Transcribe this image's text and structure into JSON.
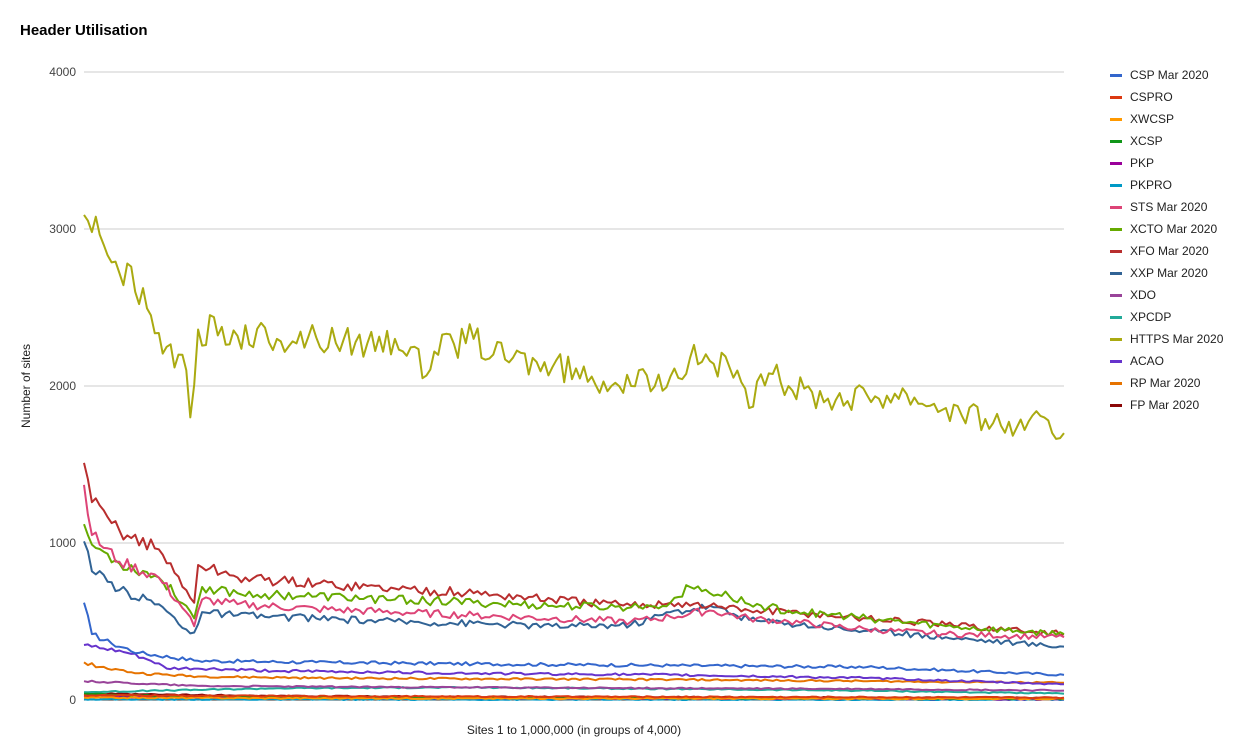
{
  "chart_data": {
    "type": "line",
    "title": "Header Utilisation",
    "xlabel": "Sites 1 to 1,000,000 (in groups of 4,000)",
    "ylabel": "Number of sites",
    "ylim": [
      0,
      4000
    ],
    "yticks": [
      0,
      1000,
      2000,
      3000,
      4000
    ],
    "x": {
      "start": 1,
      "end": 250,
      "count": 250
    },
    "grid": true,
    "legend_position": "right",
    "series": [
      {
        "name": "CSP Mar 2020",
        "color": "#3366cc",
        "points": [
          [
            1,
            620
          ],
          [
            3,
            420
          ],
          [
            8,
            360
          ],
          [
            15,
            300
          ],
          [
            30,
            250
          ],
          [
            60,
            240
          ],
          [
            100,
            230
          ],
          [
            150,
            220
          ],
          [
            200,
            210
          ],
          [
            250,
            160
          ]
        ]
      },
      {
        "name": "CSPRO",
        "color": "#dc3912",
        "points": [
          [
            1,
            30
          ],
          [
            50,
            25
          ],
          [
            100,
            22
          ],
          [
            150,
            20
          ],
          [
            200,
            18
          ],
          [
            250,
            15
          ]
        ]
      },
      {
        "name": "XWCSP",
        "color": "#ff9900",
        "points": [
          [
            1,
            15
          ],
          [
            50,
            12
          ],
          [
            100,
            10
          ],
          [
            150,
            10
          ],
          [
            200,
            8
          ],
          [
            250,
            8
          ]
        ]
      },
      {
        "name": "XCSP",
        "color": "#109618",
        "points": [
          [
            1,
            40
          ],
          [
            20,
            25
          ],
          [
            50,
            20
          ],
          [
            100,
            15
          ],
          [
            150,
            12
          ],
          [
            200,
            10
          ],
          [
            250,
            8
          ]
        ]
      },
      {
        "name": "PKP",
        "color": "#990099",
        "points": [
          [
            1,
            20
          ],
          [
            50,
            15
          ],
          [
            100,
            12
          ],
          [
            150,
            10
          ],
          [
            200,
            8
          ],
          [
            250,
            5
          ]
        ]
      },
      {
        "name": "PKPRO",
        "color": "#0099c6",
        "points": [
          [
            1,
            5
          ],
          [
            50,
            4
          ],
          [
            100,
            3
          ],
          [
            150,
            3
          ],
          [
            200,
            2
          ],
          [
            250,
            2
          ]
        ]
      },
      {
        "name": "STS Mar 2020",
        "color": "#dd4477",
        "points": [
          [
            1,
            1370
          ],
          [
            3,
            1050
          ],
          [
            10,
            880
          ],
          [
            20,
            780
          ],
          [
            27,
            560
          ],
          [
            29,
            470
          ],
          [
            31,
            640
          ],
          [
            40,
            610
          ],
          [
            60,
            580
          ],
          [
            80,
            560
          ],
          [
            100,
            540
          ],
          [
            120,
            520
          ],
          [
            140,
            500
          ],
          [
            150,
            530
          ],
          [
            160,
            570
          ],
          [
            170,
            520
          ],
          [
            180,
            500
          ],
          [
            200,
            450
          ],
          [
            220,
            420
          ],
          [
            250,
            400
          ]
        ]
      },
      {
        "name": "XCTO Mar 2020",
        "color": "#66aa00",
        "points": [
          [
            1,
            1120
          ],
          [
            3,
            990
          ],
          [
            10,
            870
          ],
          [
            20,
            780
          ],
          [
            27,
            600
          ],
          [
            29,
            520
          ],
          [
            31,
            720
          ],
          [
            40,
            680
          ],
          [
            60,
            660
          ],
          [
            80,
            640
          ],
          [
            100,
            620
          ],
          [
            120,
            600
          ],
          [
            140,
            590
          ],
          [
            150,
            620
          ],
          [
            155,
            720
          ],
          [
            165,
            660
          ],
          [
            170,
            610
          ],
          [
            180,
            570
          ],
          [
            200,
            520
          ],
          [
            220,
            470
          ],
          [
            250,
            420
          ]
        ]
      },
      {
        "name": "XFO Mar 2020",
        "color": "#b82e2e",
        "points": [
          [
            1,
            1510
          ],
          [
            3,
            1260
          ],
          [
            10,
            1080
          ],
          [
            20,
            960
          ],
          [
            27,
            700
          ],
          [
            29,
            620
          ],
          [
            30,
            860
          ],
          [
            40,
            780
          ],
          [
            60,
            740
          ],
          [
            80,
            710
          ],
          [
            100,
            680
          ],
          [
            120,
            640
          ],
          [
            140,
            600
          ],
          [
            150,
            620
          ],
          [
            160,
            600
          ],
          [
            170,
            570
          ],
          [
            180,
            560
          ],
          [
            200,
            520
          ],
          [
            220,
            480
          ],
          [
            250,
            420
          ]
        ]
      },
      {
        "name": "XXP Mar 2020",
        "color": "#316395",
        "points": [
          [
            1,
            1010
          ],
          [
            3,
            820
          ],
          [
            10,
            700
          ],
          [
            20,
            610
          ],
          [
            27,
            450
          ],
          [
            29,
            430
          ],
          [
            31,
            560
          ],
          [
            40,
            540
          ],
          [
            60,
            520
          ],
          [
            80,
            500
          ],
          [
            100,
            490
          ],
          [
            120,
            470
          ],
          [
            140,
            480
          ],
          [
            150,
            560
          ],
          [
            160,
            600
          ],
          [
            170,
            510
          ],
          [
            180,
            490
          ],
          [
            200,
            440
          ],
          [
            220,
            400
          ],
          [
            250,
            340
          ]
        ]
      },
      {
        "name": "XDO",
        "color": "#994499",
        "points": [
          [
            1,
            120
          ],
          [
            30,
            90
          ],
          [
            60,
            85
          ],
          [
            100,
            80
          ],
          [
            150,
            75
          ],
          [
            200,
            70
          ],
          [
            250,
            60
          ]
        ]
      },
      {
        "name": "XPCDP",
        "color": "#22aa99",
        "points": [
          [
            1,
            50
          ],
          [
            20,
            60
          ],
          [
            50,
            75
          ],
          [
            100,
            80
          ],
          [
            150,
            70
          ],
          [
            200,
            60
          ],
          [
            250,
            40
          ]
        ]
      },
      {
        "name": "HTTPS Mar 2020",
        "color": "#aaaa11",
        "points": [
          [
            1,
            3090
          ],
          [
            3,
            2980
          ],
          [
            6,
            2900
          ],
          [
            10,
            2720
          ],
          [
            12,
            2780
          ],
          [
            14,
            2600
          ],
          [
            18,
            2450
          ],
          [
            22,
            2250
          ],
          [
            25,
            2200
          ],
          [
            27,
            2100
          ],
          [
            28,
            1800
          ],
          [
            30,
            2360
          ],
          [
            40,
            2320
          ],
          [
            50,
            2300
          ],
          [
            60,
            2310
          ],
          [
            70,
            2280
          ],
          [
            80,
            2300
          ],
          [
            85,
            2250
          ],
          [
            87,
            2050
          ],
          [
            90,
            2220
          ],
          [
            100,
            2300
          ],
          [
            105,
            2200
          ],
          [
            110,
            2180
          ],
          [
            120,
            2120
          ],
          [
            130,
            2060
          ],
          [
            140,
            2000
          ],
          [
            150,
            2060
          ],
          [
            155,
            2180
          ],
          [
            160,
            2160
          ],
          [
            165,
            2120
          ],
          [
            170,
            1860
          ],
          [
            175,
            2080
          ],
          [
            180,
            2000
          ],
          [
            190,
            1920
          ],
          [
            200,
            1940
          ],
          [
            210,
            1950
          ],
          [
            220,
            1860
          ],
          [
            230,
            1790
          ],
          [
            240,
            1720
          ],
          [
            245,
            1800
          ],
          [
            247,
            1700
          ],
          [
            250,
            1700
          ]
        ]
      },
      {
        "name": "ACAO",
        "color": "#6633cc",
        "points": [
          [
            1,
            350
          ],
          [
            5,
            330
          ],
          [
            12,
            300
          ],
          [
            18,
            250
          ],
          [
            22,
            200
          ],
          [
            30,
            200
          ],
          [
            50,
            185
          ],
          [
            100,
            170
          ],
          [
            150,
            160
          ],
          [
            200,
            140
          ],
          [
            250,
            100
          ]
        ]
      },
      {
        "name": "RP Mar 2020",
        "color": "#e67300",
        "points": [
          [
            1,
            240
          ],
          [
            5,
            210
          ],
          [
            15,
            170
          ],
          [
            30,
            150
          ],
          [
            60,
            140
          ],
          [
            100,
            135
          ],
          [
            150,
            130
          ],
          [
            200,
            120
          ],
          [
            250,
            110
          ]
        ]
      },
      {
        "name": "FP Mar 2020",
        "color": "#8b0707",
        "points": [
          [
            1,
            40
          ],
          [
            50,
            25
          ],
          [
            100,
            20
          ],
          [
            150,
            18
          ],
          [
            200,
            15
          ],
          [
            250,
            12
          ]
        ]
      }
    ]
  }
}
